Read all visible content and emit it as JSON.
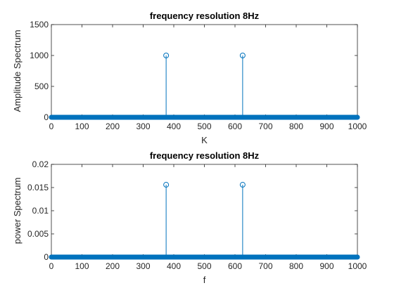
{
  "chart_data": [
    {
      "type": "stem",
      "title": "frequency resolution 8Hz",
      "xlabel": "K",
      "ylabel": "Amplitude Spectrum",
      "xlim": [
        0,
        1000
      ],
      "ylim": [
        0,
        1500
      ],
      "xticks": [
        0,
        100,
        200,
        300,
        400,
        500,
        600,
        700,
        800,
        900,
        1000
      ],
      "yticks": [
        0,
        500,
        1000,
        1500
      ],
      "ytick_labels": [
        "0",
        "500",
        "1000",
        "1500"
      ],
      "baseline": {
        "x_range": [
          0,
          1000
        ],
        "value": 0
      },
      "series": [
        {
          "x": [
            375,
            625
          ],
          "values": [
            1000,
            1000
          ]
        }
      ],
      "color": "#0072BD",
      "grid": false
    },
    {
      "type": "stem",
      "title": "frequency resolution 8Hz",
      "xlabel": "f",
      "ylabel": "power Spectrum",
      "xlim": [
        0,
        1000
      ],
      "ylim": [
        0,
        0.02
      ],
      "xticks": [
        0,
        100,
        200,
        300,
        400,
        500,
        600,
        700,
        800,
        900,
        1000
      ],
      "yticks": [
        0,
        0.005,
        0.01,
        0.015,
        0.02
      ],
      "ytick_labels": [
        "0",
        "0.005",
        "0.01",
        "0.015",
        "0.02"
      ],
      "baseline": {
        "x_range": [
          0,
          1000
        ],
        "value": 0
      },
      "series": [
        {
          "x": [
            375,
            625
          ],
          "values": [
            0.0156,
            0.0156
          ]
        }
      ],
      "color": "#0072BD",
      "grid": false
    }
  ]
}
